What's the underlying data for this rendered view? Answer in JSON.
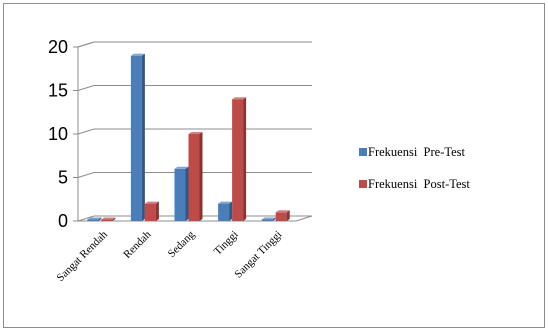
{
  "chart_data": {
    "type": "bar",
    "style": "3d-clustered-column",
    "title": "",
    "xlabel": "",
    "ylabel": "",
    "categories": [
      "Sangat Rendah",
      "Rendah",
      "Sedang",
      "Tinggi",
      "Sangat Tinggi"
    ],
    "series": [
      {
        "name": "Frekuensi  Pre-Test",
        "values": [
          0,
          19,
          6,
          2,
          0
        ],
        "color": "#4a7ebb"
      },
      {
        "name": "Frekuensi  Post-Test",
        "values": [
          0,
          2,
          10,
          14,
          1
        ],
        "color": "#be4b48"
      }
    ],
    "ylim": [
      0,
      20
    ],
    "yticks": [
      "0",
      "5",
      "10",
      "15",
      "20"
    ],
    "grid": true,
    "legend_position": "right"
  }
}
